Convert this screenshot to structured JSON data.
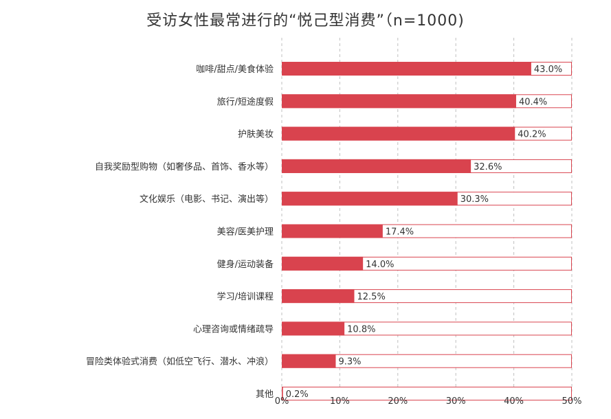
{
  "chart_data": {
    "type": "bar",
    "orientation": "horizontal",
    "title": "受访女性最常进行的“悦己型消费”（n=1000)",
    "categories": [
      "咖啡/甜点/美食体验",
      "旅行/短途度假",
      "护肤美妆",
      "自我奖励型购物（如奢侈品、首饰、香水等）",
      "文化娱乐（电影、书记、演出等）",
      "美容/医美护理",
      "健身/运动装备",
      "学习/培训课程",
      "心理咨询或情绪疏导",
      "冒险类体验式消费（如低空飞行、潜水、冲浪）",
      "其他"
    ],
    "values": [
      43.0,
      40.4,
      40.2,
      32.6,
      30.3,
      17.4,
      14.0,
      12.5,
      10.8,
      9.3,
      0.2
    ],
    "value_labels": [
      "43.0%",
      "40.4%",
      "40.2%",
      "32.6%",
      "30.3%",
      "17.4%",
      "14.0%",
      "12.5%",
      "10.8%",
      "9.3%",
      "0.2%"
    ],
    "xlim": [
      0,
      50
    ],
    "xticks": [
      "0%",
      "10%",
      "20%",
      "30%",
      "40%",
      "50%"
    ],
    "grid": "vertical dashed",
    "colors": {
      "bar": "#d9434e",
      "outline": "#d9434e",
      "grid": "#bfbfbf",
      "text": "#333333"
    }
  }
}
